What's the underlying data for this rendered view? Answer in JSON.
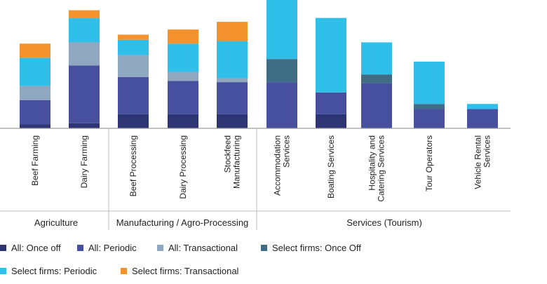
{
  "chart_data": {
    "type": "bar",
    "stacked": true,
    "title": "",
    "xlabel": "",
    "ylabel": "",
    "ylim": [
      0,
      100
    ],
    "categories": [
      "Beef Farming",
      "Dairy Farming",
      "Beef Processing",
      "Dairy Processing",
      "Stockfeed Manufacturing",
      "Accommodation Services",
      "Boating Services",
      "Hospitality and Catering Services",
      "Tour Operators",
      "Vehicle Rental Services"
    ],
    "category_lines": [
      [
        "Beef Farming"
      ],
      [
        "Dairy Farming"
      ],
      [
        "Beef Processing"
      ],
      [
        "Dairy Processing"
      ],
      [
        "Stockfeed",
        "Manufacturing"
      ],
      [
        "Accommodation",
        "Services"
      ],
      [
        "Boating Services"
      ],
      [
        "Hospitality and",
        "Catering Services"
      ],
      [
        "Tour Operators"
      ],
      [
        "Vehicle Rental",
        "Services"
      ]
    ],
    "groups": [
      {
        "name": "Agriculture",
        "start": 0,
        "end": 1
      },
      {
        "name": "Manufacturing / Agro-Processing",
        "start": 2,
        "end": 4
      },
      {
        "name": "Services (Tourism)",
        "start": 5,
        "end": 9
      }
    ],
    "series": [
      {
        "name": "All: Once off",
        "color": "#2e3573",
        "values": [
          3,
          4,
          11,
          11,
          11,
          0,
          11,
          0,
          0,
          0
        ]
      },
      {
        "name": "All: Periodic",
        "color": "#46509e",
        "values": [
          19,
          45,
          29,
          26,
          25,
          36,
          17,
          35,
          15,
          15
        ]
      },
      {
        "name": "All: Transactional",
        "color": "#8fa8bf",
        "values": [
          11,
          18,
          17,
          7,
          3,
          0,
          0,
          0,
          0,
          0
        ]
      },
      {
        "name": "Select firms: Once Off",
        "color": "#3f6d85",
        "values": [
          0,
          0,
          0,
          0,
          0,
          18,
          0,
          7,
          4,
          0
        ]
      },
      {
        "name": "Select firms: Periodic",
        "color": "#2fbfe8",
        "values": [
          22,
          19,
          12,
          22,
          29,
          51,
          58,
          25,
          33,
          4
        ]
      },
      {
        "name": "Select firms: Transactional",
        "color": "#f4922d",
        "values": [
          11,
          6,
          4,
          11,
          15,
          0,
          0,
          0,
          0,
          0
        ]
      }
    ],
    "legend_position": "bottom",
    "grid": false
  }
}
